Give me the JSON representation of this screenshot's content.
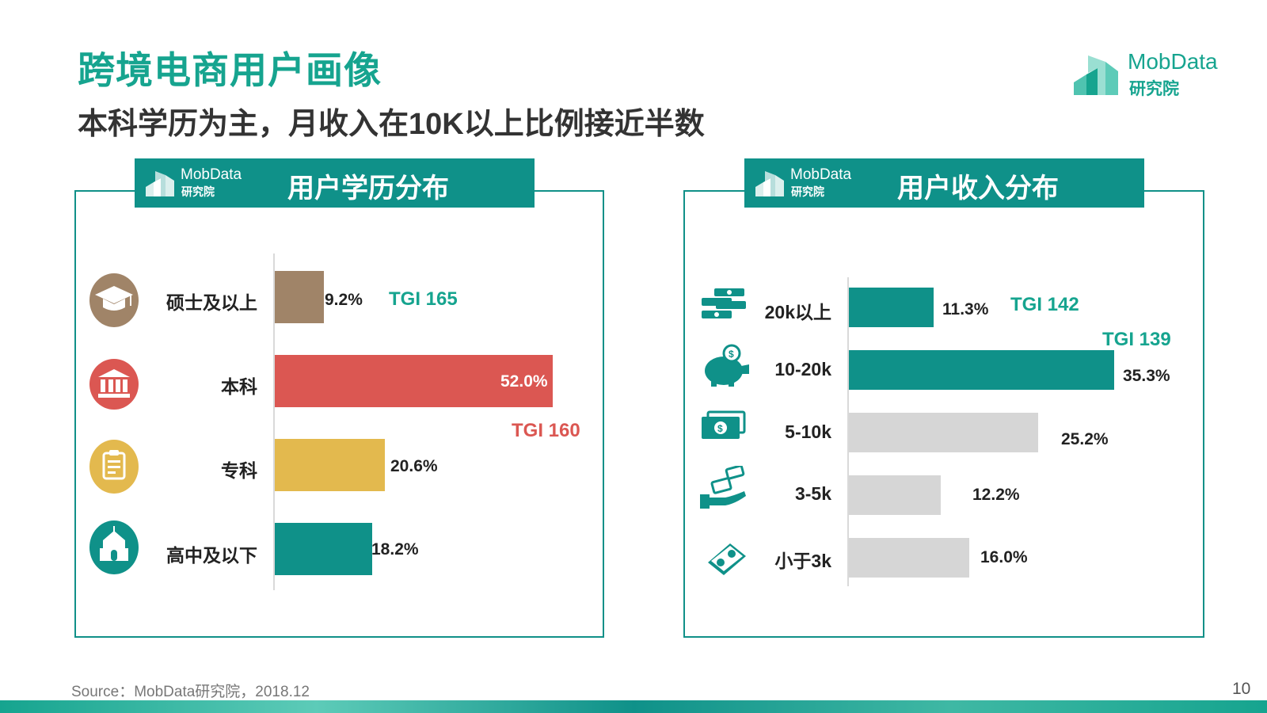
{
  "page": {
    "title": "跨境电商用户画像",
    "subtitle": "本科学历为主，月收入在10K以上比例接近半数",
    "logo": {
      "line1": "MobData",
      "line2": "研究院"
    },
    "source": "Source：MobData研究院，2018.12",
    "page_number": "10"
  },
  "colors": {
    "accent": "#16A48F",
    "header_bg": "#0F9189",
    "brown": "#A08468",
    "red": "#DB5752",
    "yellow": "#E3B94E",
    "teal": "#0F9189",
    "gray_bar": "#D6D6D6"
  },
  "chart_data": [
    {
      "type": "bar",
      "orientation": "horizontal",
      "title": "用户学历分布",
      "header_logo": {
        "line1": "MobData",
        "line2": "研究院"
      },
      "categories": [
        "硕士及以上",
        "本科",
        "专科",
        "高中及以下"
      ],
      "values": [
        9.2,
        52.0,
        20.6,
        18.2
      ],
      "value_labels": [
        "9.2%",
        "52.0%",
        "20.6%",
        "18.2%"
      ],
      "bar_colors": [
        "#A08468",
        "#DB5752",
        "#E3B94E",
        "#0F9189"
      ],
      "icons": [
        "graduation-cap-icon",
        "bank-icon",
        "clipboard-icon",
        "school-icon"
      ],
      "tgi": [
        {
          "category": "硕士及以上",
          "label": "TGI 165",
          "color": "#16A48F"
        },
        {
          "category": "本科",
          "label": "TGI 160",
          "color": "#DB5752"
        }
      ],
      "unit": "%"
    },
    {
      "type": "bar",
      "orientation": "horizontal",
      "title": "用户收入分布",
      "header_logo": {
        "line1": "MobData",
        "line2": "研究院"
      },
      "categories": [
        "20k以上",
        "10-20k",
        "5-10k",
        "3-5k",
        "小于3k"
      ],
      "values": [
        11.3,
        35.3,
        25.2,
        12.2,
        16.0
      ],
      "value_labels": [
        "11.3%",
        "35.3%",
        "25.2%",
        "12.2%",
        "16.0%"
      ],
      "bar_colors": [
        "#0F9189",
        "#0F9189",
        "#D6D6D6",
        "#D6D6D6",
        "#D6D6D6"
      ],
      "icons": [
        "cash-stack-icon",
        "piggy-bank-icon",
        "banknotes-icon",
        "hand-money-icon",
        "money-bundle-icon"
      ],
      "tgi": [
        {
          "category": "20k以上",
          "label": "TGI 142",
          "color": "#16A48F"
        },
        {
          "category": "10-20k",
          "label": "TGI 139",
          "color": "#16A48F"
        }
      ],
      "unit": "%"
    }
  ]
}
